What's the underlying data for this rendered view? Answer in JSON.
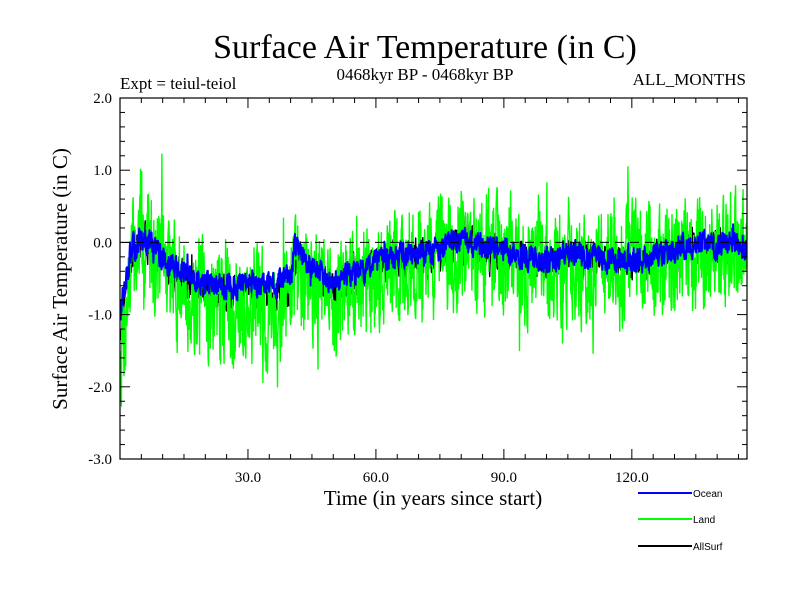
{
  "chart_data": {
    "type": "line",
    "title": "Surface Air Temperature (in C)",
    "subtitle_left": "Expt = teiul-teiol",
    "subtitle_center": "0468kyr BP - 0468kyr BP",
    "subtitle_right": "ALL_MONTHS",
    "xlabel": "Time (in years since start)",
    "ylabel": "Surface Air Temperature (in C)",
    "xlim": [
      0,
      147
    ],
    "ylim": [
      -3.0,
      2.0
    ],
    "x_ticks": [
      30,
      60,
      90,
      120
    ],
    "x_tick_labels": [
      "30.0",
      "60.0",
      "90.0",
      "120.0"
    ],
    "y_ticks": [
      -3,
      -2,
      -1,
      0,
      1,
      2
    ],
    "y_tick_labels": [
      "-3.0",
      "-2.0",
      "-1.0",
      "0.0",
      "1.0",
      "2.0"
    ],
    "reference_line": 0.0,
    "samples_per_year": 12,
    "series": [
      {
        "name": "Land",
        "color": "#00ff00",
        "anchor_years": [
          0,
          1,
          2,
          3,
          5,
          7,
          10,
          15,
          20,
          25,
          30,
          35,
          40,
          41,
          45,
          50,
          55,
          60,
          65,
          70,
          75,
          80,
          85,
          90,
          95,
          100,
          105,
          110,
          115,
          120,
          125,
          130,
          135,
          140,
          145,
          147
        ],
        "anchor_values": [
          -1.6,
          -1.2,
          -0.6,
          -0.2,
          0.1,
          0.0,
          -0.3,
          -0.7,
          -0.85,
          -0.9,
          -0.9,
          -0.9,
          -0.7,
          -0.3,
          -0.6,
          -0.85,
          -0.65,
          -0.45,
          -0.35,
          -0.3,
          -0.25,
          -0.1,
          -0.2,
          -0.2,
          -0.35,
          -0.4,
          -0.25,
          -0.3,
          -0.3,
          -0.3,
          -0.35,
          -0.25,
          -0.15,
          -0.2,
          -0.05,
          -0.3
        ],
        "noise_amplitude": 0.55,
        "seed": 7
      },
      {
        "name": "Ocean",
        "color": "#0000ff",
        "anchor_years": [
          0,
          1,
          2,
          3,
          5,
          7,
          10,
          15,
          20,
          25,
          30,
          35,
          40,
          41,
          45,
          50,
          55,
          60,
          65,
          70,
          75,
          80,
          85,
          90,
          95,
          100,
          105,
          110,
          115,
          120,
          125,
          130,
          135,
          140,
          145,
          147
        ],
        "anchor_values": [
          -1.0,
          -0.6,
          -0.3,
          -0.1,
          0.05,
          0.0,
          -0.2,
          -0.45,
          -0.55,
          -0.6,
          -0.6,
          -0.6,
          -0.5,
          -0.05,
          -0.35,
          -0.5,
          -0.4,
          -0.3,
          -0.2,
          -0.15,
          -0.1,
          0.05,
          -0.05,
          -0.1,
          -0.2,
          -0.25,
          -0.15,
          -0.2,
          -0.2,
          -0.25,
          -0.2,
          -0.1,
          0.0,
          -0.05,
          0.0,
          -0.15
        ],
        "noise_amplitude": 0.12,
        "seed": 13
      },
      {
        "name": "AllSurf",
        "color": "#000000",
        "anchor_years": [
          0,
          1,
          2,
          3,
          5,
          7,
          10,
          15,
          20,
          25,
          30,
          35,
          40,
          41,
          45,
          50,
          55,
          60,
          65,
          70,
          75,
          80,
          85,
          90,
          95,
          100,
          105,
          110,
          115,
          120,
          125,
          130,
          135,
          140,
          145,
          147
        ],
        "anchor_values": [
          -1.2,
          -0.8,
          -0.4,
          -0.15,
          0.05,
          0.0,
          -0.25,
          -0.55,
          -0.65,
          -0.7,
          -0.7,
          -0.7,
          -0.6,
          -0.1,
          -0.45,
          -0.65,
          -0.5,
          -0.35,
          -0.25,
          -0.2,
          -0.15,
          0.0,
          -0.1,
          -0.15,
          -0.25,
          -0.3,
          -0.2,
          -0.25,
          -0.25,
          -0.28,
          -0.25,
          -0.15,
          -0.05,
          -0.1,
          -0.02,
          -0.2
        ],
        "noise_amplitude": 0.18,
        "seed": 21
      }
    ],
    "draw_order": [
      "AllSurf",
      "Land",
      "Ocean"
    ],
    "legend": [
      "Ocean",
      "Land",
      "AllSurf"
    ]
  }
}
